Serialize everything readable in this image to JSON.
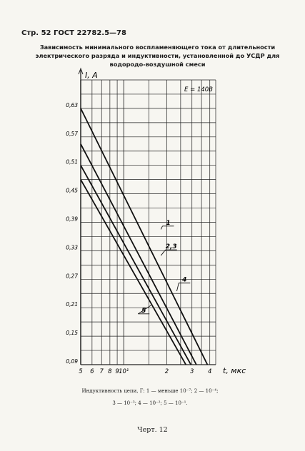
{
  "header": {
    "text": "Стр. 52 ГОСТ 22782.5—78"
  },
  "title": {
    "lines": [
      "Зависимость минимального воспламеняющего тока от длительности",
      "электрического разряда и индуктивности, установленной до УСДР для",
      "водородо-воздушной смеси"
    ]
  },
  "caption": {
    "lines": [
      "Индуктивность цепи, Г: 1 — меньше 10⁻⁷; 2 — 10⁻⁴;",
      "3 — 10⁻³; 4 — 10⁻²; 5 — 10⁻¹."
    ]
  },
  "figure_label": "Черт. 12",
  "chart_data": {
    "type": "line",
    "title": "Зависимость минимального воспламеняющего тока от длительности электрического разряда и индуктивности, установленной до УСДР для водородо-воздушной смеси",
    "xlabel": "t, мкс",
    "ylabel": "I, A",
    "x_scale": "log",
    "x_ticks": [
      {
        "value": 0.5,
        "label": "5"
      },
      {
        "value": 0.6,
        "label": "6"
      },
      {
        "value": 0.7,
        "label": "7"
      },
      {
        "value": 0.8,
        "label": "8"
      },
      {
        "value": 0.9,
        "label": "9"
      },
      {
        "value": 1,
        "label": "10¹"
      },
      {
        "value": 2,
        "label": "2"
      },
      {
        "value": 3,
        "label": "3"
      },
      {
        "value": 4,
        "label": "4"
      }
    ],
    "xlim": [
      0.5,
      4.4
    ],
    "y_ticks": [
      "0,09",
      "0,15",
      "0,21",
      "0,27",
      "0,33",
      "0,39",
      "0,45",
      "0,51",
      "0,57",
      "0,63"
    ],
    "ylim": [
      0.09,
      0.69
    ],
    "grid": true,
    "annotation": "E = 140B",
    "series": [
      {
        "name": "1",
        "x": [
          0.5,
          3.85
        ],
        "y": [
          0.63,
          0.09
        ]
      },
      {
        "name": "2,3",
        "x": [
          0.5,
          3.22
        ],
        "y": [
          0.555,
          0.09
        ]
      },
      {
        "name": "4",
        "x": [
          0.5,
          2.95
        ],
        "y": [
          0.51,
          0.09
        ]
      },
      {
        "name": "5",
        "x": [
          0.5,
          2.72
        ],
        "y": [
          0.48,
          0.09
        ]
      }
    ],
    "series_labels": [
      {
        "text": "1",
        "x": 2.0,
        "y": 0.385,
        "tick_x": 1.82,
        "tick_y": 0.375
      },
      {
        "text": "2,3",
        "x": 2.1,
        "y": 0.335,
        "tick_x": 1.82,
        "tick_y": 0.32
      },
      {
        "text": "4",
        "x": 2.6,
        "y": 0.265,
        "tick_x": 2.35,
        "tick_y": 0.245
      },
      {
        "text": "5",
        "x": 1.35,
        "y": 0.2,
        "tick_x": 1.55,
        "tick_y": 0.215
      }
    ]
  }
}
